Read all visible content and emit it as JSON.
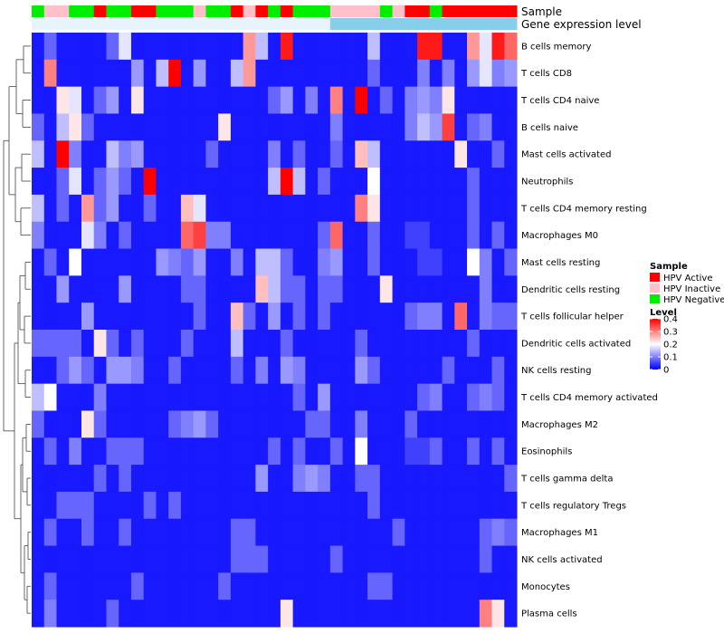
{
  "chart_data": {
    "type": "heatmap",
    "title": "",
    "annotation_tracks": [
      "Sample",
      "Gene expression level"
    ],
    "row_labels": [
      "B cells memory",
      "T cells CD8",
      "T cells CD4 naive",
      "B cells naive",
      "Mast cells activated",
      "Neutrophils",
      "T cells CD4 memory resting",
      "Macrophages M0",
      "Mast cells resting",
      "Dendritic cells resting",
      "T cells follicular helper",
      "Dendritic cells activated",
      "NK cells resting",
      "T cells CD4 memory activated",
      "Macrophages M2",
      "Eosinophils",
      "T cells gamma delta",
      "T cells regulatory  Tregs",
      "Macrophages M1",
      "NK cells activated",
      "Monocytes",
      "Plasma cells"
    ],
    "sample_groups": [
      "G",
      "P",
      "P",
      "G",
      "G",
      "R",
      "G",
      "G",
      "R",
      "R",
      "G",
      "G",
      "G",
      "P",
      "G",
      "G",
      "R",
      "P",
      "R",
      "G",
      "R",
      "G",
      "G",
      "G",
      "P",
      "P",
      "P",
      "P",
      "G",
      "P",
      "R",
      "R",
      "G",
      "R",
      "R",
      "R",
      "R",
      "R",
      "R"
    ],
    "expression_groups": [
      "L",
      "L",
      "L",
      "L",
      "L",
      "L",
      "L",
      "L",
      "L",
      "L",
      "L",
      "L",
      "L",
      "L",
      "L",
      "L",
      "L",
      "L",
      "L",
      "L",
      "L",
      "L",
      "L",
      "L",
      "H",
      "H",
      "H",
      "H",
      "H",
      "H",
      "H",
      "H",
      "H",
      "H",
      "H",
      "H",
      "H",
      "H",
      "H"
    ],
    "values": [
      [
        0.02,
        0.08,
        0.02,
        0.02,
        0.02,
        0.02,
        0.08,
        0.18,
        0.02,
        0.02,
        0.02,
        0.02,
        0.02,
        0.02,
        0.02,
        0.02,
        0.02,
        0.28,
        0.15,
        0.02,
        0.38,
        0.02,
        0.02,
        0.02,
        0.02,
        0.02,
        0.02,
        0.15,
        0.02,
        0.02,
        0.02,
        0.38,
        0.38,
        0.02,
        0.02,
        0.28,
        0.18,
        0.38,
        0.32
      ],
      [
        0.02,
        0.3,
        0.02,
        0.02,
        0.02,
        0.02,
        0.02,
        0.02,
        0.12,
        0.02,
        0.15,
        0.4,
        0.02,
        0.12,
        0.02,
        0.02,
        0.15,
        0.28,
        0.02,
        0.02,
        0.02,
        0.02,
        0.02,
        0.02,
        0.02,
        0.02,
        0.02,
        0.08,
        0.02,
        0.02,
        0.02,
        0.1,
        0.02,
        0.1,
        0.02,
        0.12,
        0.18,
        0.1,
        0.12
      ],
      [
        0.02,
        0.02,
        0.22,
        0.18,
        0.02,
        0.08,
        0.12,
        0.02,
        0.22,
        0.02,
        0.02,
        0.02,
        0.02,
        0.02,
        0.02,
        0.02,
        0.02,
        0.02,
        0.02,
        0.08,
        0.12,
        0.02,
        0.1,
        0.02,
        0.3,
        0.02,
        0.4,
        0.02,
        0.08,
        0.02,
        0.1,
        0.12,
        0.1,
        0.22,
        0.02,
        0.02,
        0.02,
        0.02,
        0.02
      ],
      [
        0.08,
        0.02,
        0.15,
        0.22,
        0.08,
        0.02,
        0.02,
        0.02,
        0.02,
        0.02,
        0.02,
        0.02,
        0.02,
        0.02,
        0.02,
        0.22,
        0.02,
        0.02,
        0.02,
        0.02,
        0.02,
        0.02,
        0.02,
        0.02,
        0.1,
        0.02,
        0.02,
        0.02,
        0.02,
        0.02,
        0.1,
        0.15,
        0.12,
        0.35,
        0.02,
        0.08,
        0.1,
        0.02,
        0.02
      ],
      [
        0.15,
        0.02,
        0.4,
        0.1,
        0.02,
        0.02,
        0.15,
        0.1,
        0.12,
        0.02,
        0.02,
        0.02,
        0.02,
        0.02,
        0.08,
        0.02,
        0.02,
        0.02,
        0.02,
        0.1,
        0.02,
        0.08,
        0.02,
        0.02,
        0.08,
        0.02,
        0.25,
        0.15,
        0.02,
        0.02,
        0.02,
        0.02,
        0.02,
        0.02,
        0.22,
        0.02,
        0.02,
        0.08,
        0.02
      ],
      [
        0.02,
        0.02,
        0.08,
        0.18,
        0.02,
        0.08,
        0.12,
        0.08,
        0.02,
        0.4,
        0.02,
        0.02,
        0.02,
        0.02,
        0.02,
        0.02,
        0.02,
        0.02,
        0.02,
        0.15,
        0.4,
        0.15,
        0.02,
        0.08,
        0.02,
        0.02,
        0.02,
        0.2,
        0.02,
        0.02,
        0.02,
        0.02,
        0.02,
        0.02,
        0.02,
        0.08,
        0.02,
        0.02,
        0.02
      ],
      [
        0.15,
        0.02,
        0.08,
        0.02,
        0.28,
        0.08,
        0.12,
        0.02,
        0.02,
        0.08,
        0.02,
        0.02,
        0.25,
        0.18,
        0.02,
        0.02,
        0.02,
        0.02,
        0.02,
        0.02,
        0.02,
        0.02,
        0.02,
        0.02,
        0.02,
        0.02,
        0.3,
        0.22,
        0.02,
        0.02,
        0.02,
        0.02,
        0.02,
        0.02,
        0.02,
        0.08,
        0.02,
        0.02,
        0.02
      ],
      [
        0.1,
        0.02,
        0.02,
        0.02,
        0.18,
        0.1,
        0.02,
        0.08,
        0.02,
        0.02,
        0.02,
        0.02,
        0.32,
        0.35,
        0.1,
        0.1,
        0.02,
        0.02,
        0.02,
        0.02,
        0.02,
        0.02,
        0.02,
        0.08,
        0.32,
        0.02,
        0.02,
        0.08,
        0.02,
        0.02,
        0.05,
        0.05,
        0.02,
        0.02,
        0.02,
        0.08,
        0.02,
        0.08,
        0.02
      ],
      [
        0.02,
        0.08,
        0.02,
        0.2,
        0.02,
        0.02,
        0.02,
        0.02,
        0.02,
        0.02,
        0.12,
        0.1,
        0.08,
        0.12,
        0.02,
        0.02,
        0.1,
        0.02,
        0.15,
        0.15,
        0.08,
        0.02,
        0.02,
        0.1,
        0.12,
        0.02,
        0.02,
        0.08,
        0.02,
        0.02,
        0.02,
        0.05,
        0.05,
        0.02,
        0.02,
        0.2,
        0.1,
        0.02,
        0.08
      ],
      [
        0.02,
        0.02,
        0.12,
        0.02,
        0.02,
        0.02,
        0.02,
        0.12,
        0.02,
        0.02,
        0.02,
        0.02,
        0.08,
        0.08,
        0.02,
        0.02,
        0.02,
        0.02,
        0.25,
        0.15,
        0.08,
        0.08,
        0.02,
        0.08,
        0.08,
        0.02,
        0.02,
        0.02,
        0.22,
        0.02,
        0.02,
        0.02,
        0.02,
        0.02,
        0.02,
        0.02,
        0.1,
        0.02,
        0.02
      ],
      [
        0.02,
        0.02,
        0.02,
        0.02,
        0.12,
        0.02,
        0.02,
        0.02,
        0.02,
        0.02,
        0.02,
        0.02,
        0.02,
        0.08,
        0.02,
        0.02,
        0.25,
        0.08,
        0.02,
        0.12,
        0.02,
        0.08,
        0.02,
        0.08,
        0.02,
        0.02,
        0.02,
        0.02,
        0.02,
        0.02,
        0.08,
        0.1,
        0.1,
        0.02,
        0.32,
        0.02,
        0.1,
        0.08,
        0.08
      ],
      [
        0.08,
        0.08,
        0.08,
        0.08,
        0.02,
        0.22,
        0.08,
        0.02,
        0.08,
        0.02,
        0.02,
        0.02,
        0.08,
        0.02,
        0.02,
        0.02,
        0.15,
        0.02,
        0.02,
        0.02,
        0.08,
        0.02,
        0.02,
        0.02,
        0.02,
        0.02,
        0.08,
        0.02,
        0.02,
        0.02,
        0.02,
        0.02,
        0.02,
        0.02,
        0.02,
        0.08,
        0.02,
        0.02,
        0.02
      ],
      [
        0.02,
        0.02,
        0.08,
        0.12,
        0.08,
        0.02,
        0.12,
        0.12,
        0.1,
        0.02,
        0.02,
        0.08,
        0.02,
        0.02,
        0.02,
        0.02,
        0.08,
        0.02,
        0.1,
        0.02,
        0.12,
        0.1,
        0.02,
        0.02,
        0.02,
        0.02,
        0.12,
        0.08,
        0.02,
        0.02,
        0.02,
        0.02,
        0.02,
        0.08,
        0.02,
        0.02,
        0.02,
        0.08,
        0.02
      ],
      [
        0.15,
        0.2,
        0.02,
        0.02,
        0.02,
        0.1,
        0.02,
        0.02,
        0.02,
        0.02,
        0.02,
        0.02,
        0.02,
        0.02,
        0.02,
        0.02,
        0.02,
        0.02,
        0.02,
        0.02,
        0.02,
        0.08,
        0.02,
        0.12,
        0.02,
        0.02,
        0.02,
        0.02,
        0.02,
        0.02,
        0.02,
        0.08,
        0.1,
        0.02,
        0.02,
        0.08,
        0.1,
        0.08,
        0.02
      ],
      [
        0.08,
        0.02,
        0.02,
        0.02,
        0.22,
        0.08,
        0.02,
        0.02,
        0.02,
        0.02,
        0.02,
        0.08,
        0.1,
        0.12,
        0.08,
        0.02,
        0.02,
        0.02,
        0.02,
        0.02,
        0.02,
        0.02,
        0.08,
        0.08,
        0.02,
        0.02,
        0.1,
        0.02,
        0.02,
        0.02,
        0.08,
        0.02,
        0.02,
        0.02,
        0.02,
        0.02,
        0.02,
        0.02,
        0.02
      ],
      [
        0.02,
        0.08,
        0.02,
        0.1,
        0.02,
        0.02,
        0.08,
        0.08,
        0.08,
        0.02,
        0.02,
        0.02,
        0.02,
        0.02,
        0.02,
        0.02,
        0.02,
        0.02,
        0.02,
        0.08,
        0.02,
        0.08,
        0.02,
        0.02,
        0.08,
        0.02,
        0.2,
        0.02,
        0.02,
        0.02,
        0.05,
        0.05,
        0.08,
        0.02,
        0.02,
        0.08,
        0.02,
        0.08,
        0.02
      ],
      [
        0.02,
        0.02,
        0.02,
        0.02,
        0.02,
        0.08,
        0.02,
        0.08,
        0.02,
        0.02,
        0.02,
        0.02,
        0.02,
        0.02,
        0.02,
        0.02,
        0.02,
        0.02,
        0.12,
        0.02,
        0.02,
        0.1,
        0.12,
        0.1,
        0.02,
        0.02,
        0.08,
        0.08,
        0.02,
        0.02,
        0.02,
        0.02,
        0.02,
        0.02,
        0.02,
        0.02,
        0.02,
        0.02,
        0.08
      ],
      [
        0.02,
        0.02,
        0.08,
        0.08,
        0.08,
        0.02,
        0.02,
        0.02,
        0.02,
        0.08,
        0.02,
        0.08,
        0.02,
        0.02,
        0.02,
        0.02,
        0.02,
        0.02,
        0.02,
        0.02,
        0.02,
        0.02,
        0.02,
        0.02,
        0.02,
        0.02,
        0.02,
        0.08,
        0.02,
        0.02,
        0.02,
        0.02,
        0.02,
        0.02,
        0.02,
        0.02,
        0.02,
        0.02,
        0.02
      ],
      [
        0.02,
        0.08,
        0.02,
        0.02,
        0.08,
        0.02,
        0.02,
        0.08,
        0.02,
        0.02,
        0.02,
        0.02,
        0.02,
        0.02,
        0.02,
        0.02,
        0.08,
        0.08,
        0.02,
        0.02,
        0.02,
        0.02,
        0.02,
        0.02,
        0.02,
        0.02,
        0.02,
        0.02,
        0.02,
        0.08,
        0.02,
        0.02,
        0.02,
        0.02,
        0.02,
        0.02,
        0.08,
        0.1,
        0.08
      ],
      [
        0.02,
        0.02,
        0.02,
        0.02,
        0.02,
        0.02,
        0.02,
        0.02,
        0.02,
        0.02,
        0.02,
        0.02,
        0.02,
        0.02,
        0.02,
        0.02,
        0.08,
        0.08,
        0.08,
        0.02,
        0.02,
        0.02,
        0.02,
        0.02,
        0.08,
        0.02,
        0.02,
        0.02,
        0.02,
        0.02,
        0.02,
        0.02,
        0.02,
        0.02,
        0.02,
        0.02,
        0.08,
        0.02,
        0.02
      ],
      [
        0.02,
        0.08,
        0.02,
        0.02,
        0.02,
        0.02,
        0.02,
        0.02,
        0.08,
        0.02,
        0.02,
        0.02,
        0.02,
        0.02,
        0.02,
        0.08,
        0.02,
        0.02,
        0.02,
        0.02,
        0.02,
        0.02,
        0.02,
        0.02,
        0.02,
        0.02,
        0.02,
        0.08,
        0.08,
        0.02,
        0.02,
        0.02,
        0.02,
        0.02,
        0.02,
        0.02,
        0.02,
        0.02,
        0.02
      ],
      [
        0.02,
        0.1,
        0.02,
        0.02,
        0.02,
        0.02,
        0.08,
        0.02,
        0.02,
        0.02,
        0.02,
        0.02,
        0.02,
        0.02,
        0.02,
        0.02,
        0.02,
        0.02,
        0.02,
        0.02,
        0.22,
        0.02,
        0.02,
        0.02,
        0.02,
        0.02,
        0.02,
        0.02,
        0.02,
        0.02,
        0.02,
        0.02,
        0.02,
        0.02,
        0.02,
        0.02,
        0.3,
        0.22,
        0.02
      ]
    ],
    "legend_sample": {
      "title": "Sample",
      "entries": [
        {
          "key": "R",
          "label": "HPV Active",
          "color": "#ff0000"
        },
        {
          "key": "P",
          "label": "HPV Inactive",
          "color": "#ffc0cb"
        },
        {
          "key": "G",
          "label": "HPV Negative",
          "color": "#00ee00"
        }
      ]
    },
    "expression_colors": {
      "L": "#e8f4fb",
      "H": "#87ceeb"
    },
    "legend_level": {
      "title": "Level",
      "ticks": [
        "0.4",
        "0.3",
        "0.2",
        "0.1",
        "0"
      ],
      "tick_values": [
        0.4,
        0.3,
        0.2,
        0.1,
        0
      ],
      "range": [
        0,
        0.4
      ],
      "colors": {
        "low": "#0000ff",
        "mid": "#ffffff",
        "high": "#ff0000"
      }
    }
  }
}
